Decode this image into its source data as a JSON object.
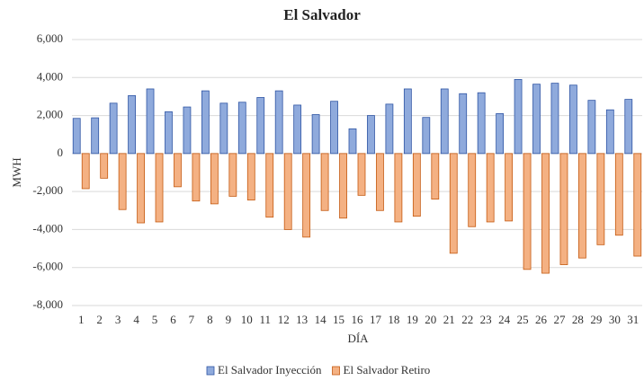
{
  "chart_data": {
    "type": "bar",
    "title": "El Salvador",
    "x_label": "DÍA",
    "y_label": "MWH",
    "categories": [
      "1",
      "2",
      "3",
      "4",
      "5",
      "6",
      "7",
      "8",
      "9",
      "10",
      "11",
      "12",
      "13",
      "14",
      "15",
      "16",
      "17",
      "18",
      "19",
      "20",
      "21",
      "22",
      "23",
      "24",
      "25",
      "26",
      "27",
      "28",
      "29",
      "30",
      "31"
    ],
    "series": [
      {
        "name": "El Salvador Inyección",
        "color": "#8faadc",
        "values": [
          1850,
          1880,
          2650,
          3050,
          3400,
          2200,
          2450,
          3300,
          2650,
          2700,
          2950,
          3300,
          2550,
          2050,
          2750,
          1300,
          2000,
          2600,
          3400,
          1900,
          3400,
          3150,
          3200,
          2100,
          3900,
          3650,
          3700,
          3600,
          2800,
          2300,
          2850
        ]
      },
      {
        "name": "El Salvador Retiro",
        "color": "#f4b183",
        "values": [
          -1850,
          -1300,
          -2950,
          -3650,
          -3600,
          -1750,
          -2500,
          -2650,
          -2250,
          -2450,
          -3350,
          -4000,
          -4400,
          -3000,
          -3400,
          -2200,
          -3000,
          -3600,
          -3300,
          -2400,
          -5250,
          -3850,
          -3600,
          -3550,
          -6100,
          -6300,
          -5850,
          -5500,
          -4800,
          -4300,
          -5400
        ]
      }
    ],
    "ylim": [
      -8000,
      6000
    ],
    "yticks": [
      {
        "value": -8000,
        "label": "-8,000"
      },
      {
        "value": -6000,
        "label": "-6,000"
      },
      {
        "value": -4000,
        "label": "-4,000"
      },
      {
        "value": -2000,
        "label": "-2,000"
      },
      0,
      {
        "value": 2000,
        "label": "2,000"
      },
      {
        "value": 4000,
        "label": "4,000"
      },
      {
        "value": 6000,
        "label": "6,000"
      }
    ],
    "grid": true,
    "legend": "bottom"
  }
}
